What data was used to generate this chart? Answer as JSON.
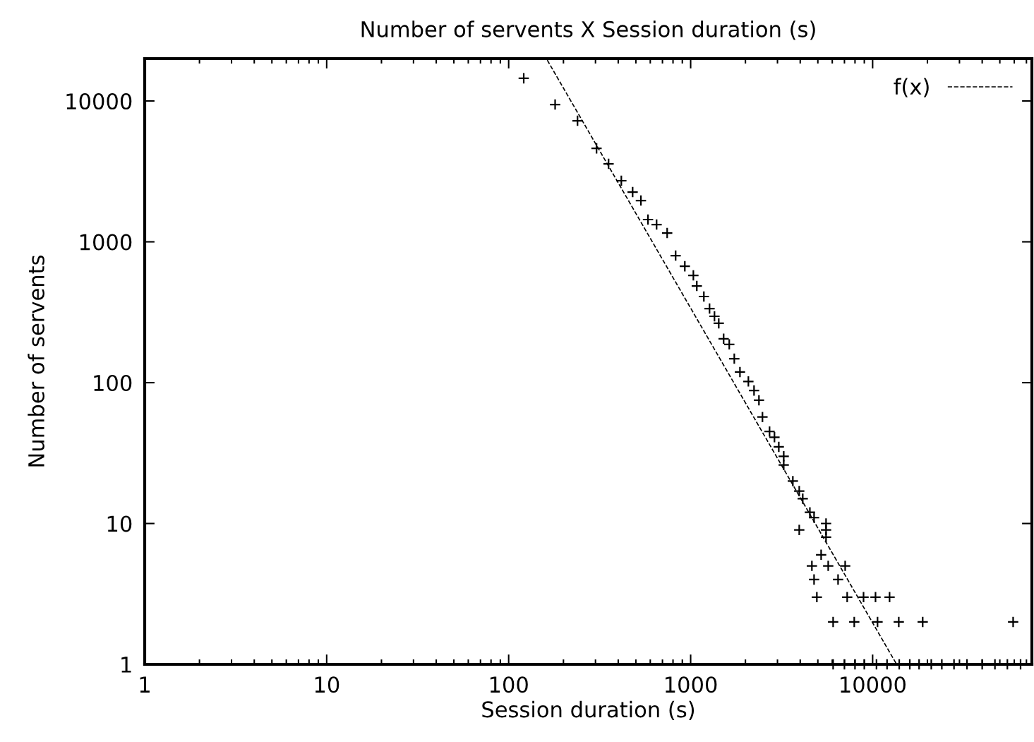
{
  "chart_data": {
    "type": "scatter",
    "title": "Number of servents X Session duration (s)",
    "xlabel": "Session duration (s)",
    "ylabel": "Number of servents",
    "log": "xy",
    "xlim": [
      1,
      75000
    ],
    "ylim": [
      1,
      20000
    ],
    "xticks": [
      1,
      10,
      100,
      1000,
      10000
    ],
    "yticks": [
      1,
      10,
      100,
      1000,
      10000
    ],
    "grid": false,
    "legend": "top right",
    "marker": "cross",
    "series": [
      {
        "color": "#000000",
        "x": [
          121,
          180,
          239,
          304,
          354,
          416,
          480,
          533,
          583,
          650,
          743,
          827,
          929,
          1035,
          1081,
          1182,
          1270,
          1352,
          1427,
          1518,
          1630,
          1737,
          1866,
          2076,
          2230,
          2373,
          2481,
          2714,
          2888,
          3050,
          3247,
          3247,
          3644,
          3951,
          4130,
          4520,
          4766,
          5546,
          3951,
          5546,
          5546,
          5212,
          4637,
          5700,
          7064,
          4766,
          6457,
          4937,
          7247,
          8913,
          10370,
          12390,
          6066,
          7925,
          10640,
          13920,
          18840,
          59160,
          6066,
          7000,
          8000,
          9000,
          10500,
          12000,
          14000,
          16000,
          18000,
          21000,
          24000,
          28000,
          33000,
          40000,
          47000,
          55000,
          65000
        ],
        "values": [
          14500,
          9440,
          7240,
          4610,
          3580,
          2715,
          2256,
          1964,
          1439,
          1327,
          1155,
          798,
          671,
          578,
          486,
          409,
          336,
          296,
          264,
          205,
          187,
          148,
          119,
          102,
          88,
          75,
          57,
          45,
          41,
          35,
          30,
          26,
          20,
          17,
          15,
          12,
          11,
          10,
          9,
          9,
          8,
          6,
          5,
          5,
          5,
          4,
          4,
          3,
          3,
          3,
          3,
          3,
          2,
          2,
          2,
          2,
          2,
          2,
          1,
          1,
          1,
          1,
          1,
          1,
          1,
          1,
          1,
          1,
          1,
          1,
          1,
          1,
          1,
          1,
          1
        ]
      },
      {
        "type": "line",
        "name": "f(x)",
        "color": "#000000",
        "line_style": "dashed",
        "marker": "none",
        "x": [
          163,
          13550
        ],
        "values": [
          19500,
          1
        ]
      }
    ]
  }
}
